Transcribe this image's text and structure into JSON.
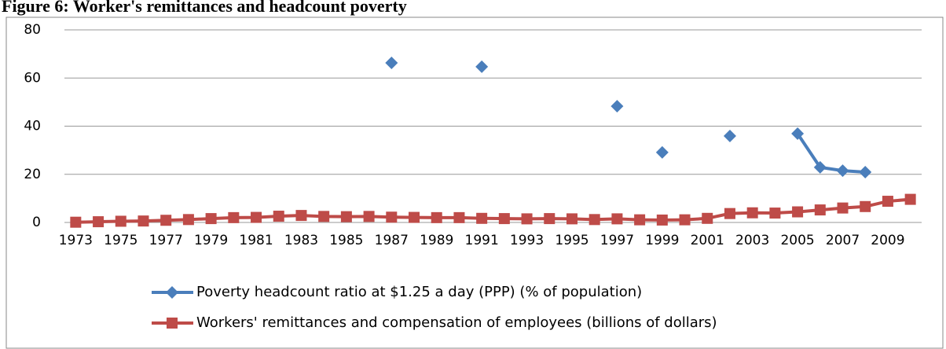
{
  "chart_data": {
    "type": "line",
    "title": "Figure 6: Worker's remittances and headcount poverty",
    "categories": [
      "1973",
      null,
      "1975",
      null,
      "1977",
      null,
      "1979",
      null,
      "1981",
      null,
      "1983",
      null,
      "1985",
      null,
      "1987",
      null,
      "1989",
      null,
      "1991",
      null,
      "1993",
      null,
      "1995",
      null,
      "1997",
      null,
      "1999",
      null,
      "2001",
      null,
      "2003",
      null,
      "2005",
      null,
      "2007",
      null,
      "2009",
      null
    ],
    "series": [
      {
        "name": "Poverty headcount ratio at $1.25 a day (PPP) (% of population)",
        "color": "#4a7ebb",
        "marker": "diamond",
        "values": [
          null,
          null,
          null,
          null,
          null,
          null,
          null,
          null,
          null,
          null,
          null,
          null,
          null,
          null,
          66.3,
          null,
          null,
          null,
          64.7,
          null,
          null,
          null,
          null,
          null,
          48.3,
          null,
          29.1,
          null,
          null,
          35.9,
          null,
          null,
          36.9,
          22.9,
          21.5,
          20.9,
          null,
          null
        ]
      },
      {
        "name": "Workers' remittances and compensation of employees (billions of dollars)",
        "color": "#be4b48",
        "marker": "square",
        "values": [
          0.1,
          0.3,
          0.5,
          0.6,
          0.9,
          1.2,
          1.6,
          2.0,
          2.1,
          2.6,
          2.9,
          2.5,
          2.4,
          2.5,
          2.2,
          2.1,
          2.0,
          2.0,
          1.7,
          1.6,
          1.5,
          1.6,
          1.5,
          1.2,
          1.5,
          1.1,
          1.0,
          1.1,
          1.7,
          3.7,
          4.0,
          3.9,
          4.4,
          5.2,
          6.0,
          6.6,
          8.8,
          9.6
        ]
      }
    ],
    "ylim": [
      0,
      80
    ],
    "yticks": [
      0,
      20,
      40,
      60,
      80
    ],
    "grid": true,
    "legend": "bottom"
  }
}
